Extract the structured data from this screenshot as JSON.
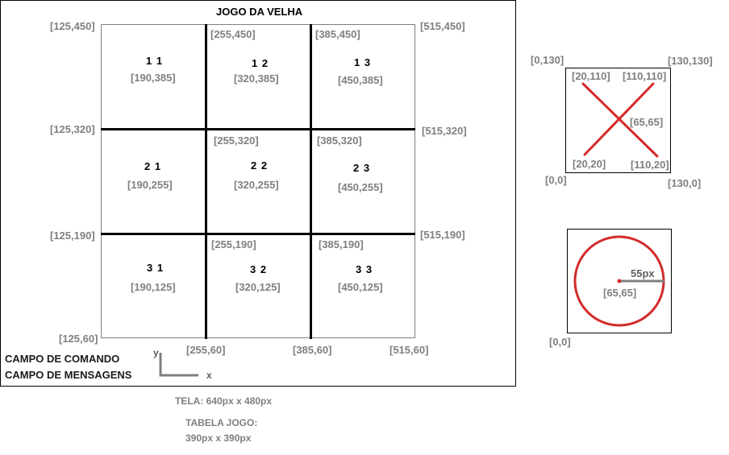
{
  "title": "JOGO DA VELHA",
  "board": {
    "outer_corners": {
      "top_left": "[125,450]",
      "top_right": "[515,450]",
      "bottom_left": "[125,60]",
      "bottom_right": "[515,60]"
    },
    "line_labels": {
      "v1_top": "[255,450]",
      "v2_top": "[385,450]",
      "v1_bottom": "[255,60]",
      "v2_bottom": "[385,60]",
      "h1_left": "[125,320]",
      "h1_right": "[515,320]",
      "h2_left": "[125,190]",
      "h2_right": "[515,190]",
      "h1_v1": "[255,320]",
      "h1_v2": "[385,320]",
      "h2_v1": "[255,190]",
      "h2_v2": "[385,190]"
    },
    "cells": [
      {
        "name": "1 1",
        "center": "[190,385]"
      },
      {
        "name": "1 2",
        "center": "[320,385]"
      },
      {
        "name": "1 3",
        "center": "[450,385]"
      },
      {
        "name": "2 1",
        "center": "[190,255]"
      },
      {
        "name": "2 2",
        "center": "[320,255]"
      },
      {
        "name": "2 3",
        "center": "[450,255]"
      },
      {
        "name": "3 1",
        "center": "[190,125]"
      },
      {
        "name": "3 2",
        "center": "[320,125]"
      },
      {
        "name": "3 3",
        "center": "[450,125]"
      }
    ]
  },
  "command_field": "CAMPO DE COMANDO",
  "message_field": "CAMPO DE MENSAGENS",
  "axes": {
    "y": "y",
    "x": "x"
  },
  "screen_info": "TELA: 640px x 480px",
  "table_info_line1": "TABELA JOGO:",
  "table_info_line2": "390px x 390px",
  "x_piece": {
    "top_left": "[0,130]",
    "top_right": "[130,130]",
    "bottom_left": "[0,0]",
    "bottom_right": "[130,0]",
    "line_top_left": "[20,110]",
    "line_top_right": "[110,110]",
    "line_bottom_left": "[20,20]",
    "line_bottom_right": "[110,20]",
    "center": "[65,65]",
    "color": "#d42a2a"
  },
  "o_piece": {
    "bottom_left": "[0,0]",
    "radius": "55px",
    "center": "[65,65]",
    "color": "#d42a2a"
  }
}
